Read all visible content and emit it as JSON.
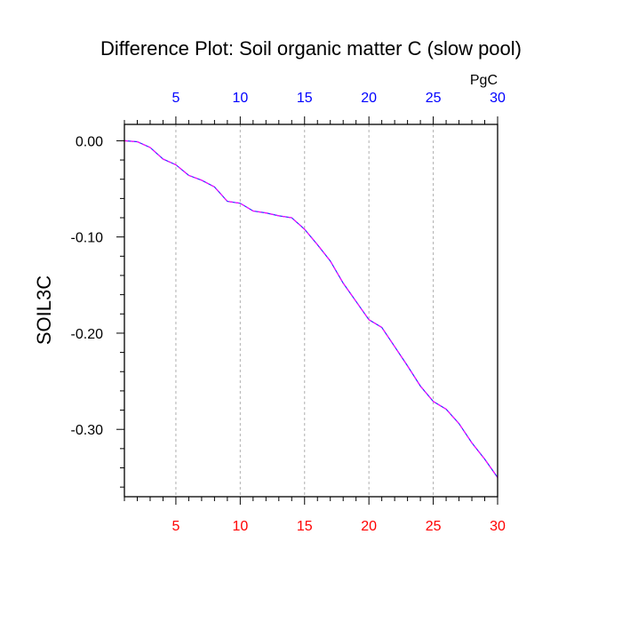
{
  "chart_data": {
    "type": "line",
    "title": "Difference Plot: Soil organic matter C (slow pool)",
    "ylabel": "SOIL3C",
    "units_label": "PgC",
    "xlim": [
      1,
      30
    ],
    "ylim": [
      -0.37,
      0.017
    ],
    "x_major_ticks": [
      5,
      10,
      15,
      20,
      25,
      30
    ],
    "x_tick_labels": [
      "5",
      "10",
      "15",
      "20",
      "25",
      "30"
    ],
    "y_major_ticks": [
      0.0,
      -0.1,
      -0.2,
      -0.3
    ],
    "y_tick_labels": [
      "0.00",
      "-0.10",
      "-0.20",
      "-0.30"
    ],
    "grid": "vertical-dashed-at-major-x",
    "colors": {
      "bottom_tick_labels": "#ff0000",
      "top_tick_labels": "#0000ff",
      "series_main": "#3030ff",
      "series_dash": "#ff00ff"
    },
    "series": [
      {
        "name": "SOIL3C difference",
        "x": [
          1,
          2,
          3,
          4,
          5,
          6,
          7,
          8,
          9,
          10,
          11,
          12,
          13,
          14,
          15,
          16,
          17,
          18,
          19,
          20,
          21,
          22,
          23,
          24,
          25,
          26,
          27,
          28,
          29,
          30
        ],
        "values": [
          0.0,
          -0.001,
          -0.007,
          -0.019,
          -0.025,
          -0.036,
          -0.041,
          -0.048,
          -0.063,
          -0.065,
          -0.073,
          -0.075,
          -0.078,
          -0.08,
          -0.092,
          -0.108,
          -0.125,
          -0.148,
          -0.167,
          -0.186,
          -0.194,
          -0.214,
          -0.234,
          -0.255,
          -0.271,
          -0.279,
          -0.294,
          -0.314,
          -0.331,
          -0.35
        ]
      }
    ]
  }
}
